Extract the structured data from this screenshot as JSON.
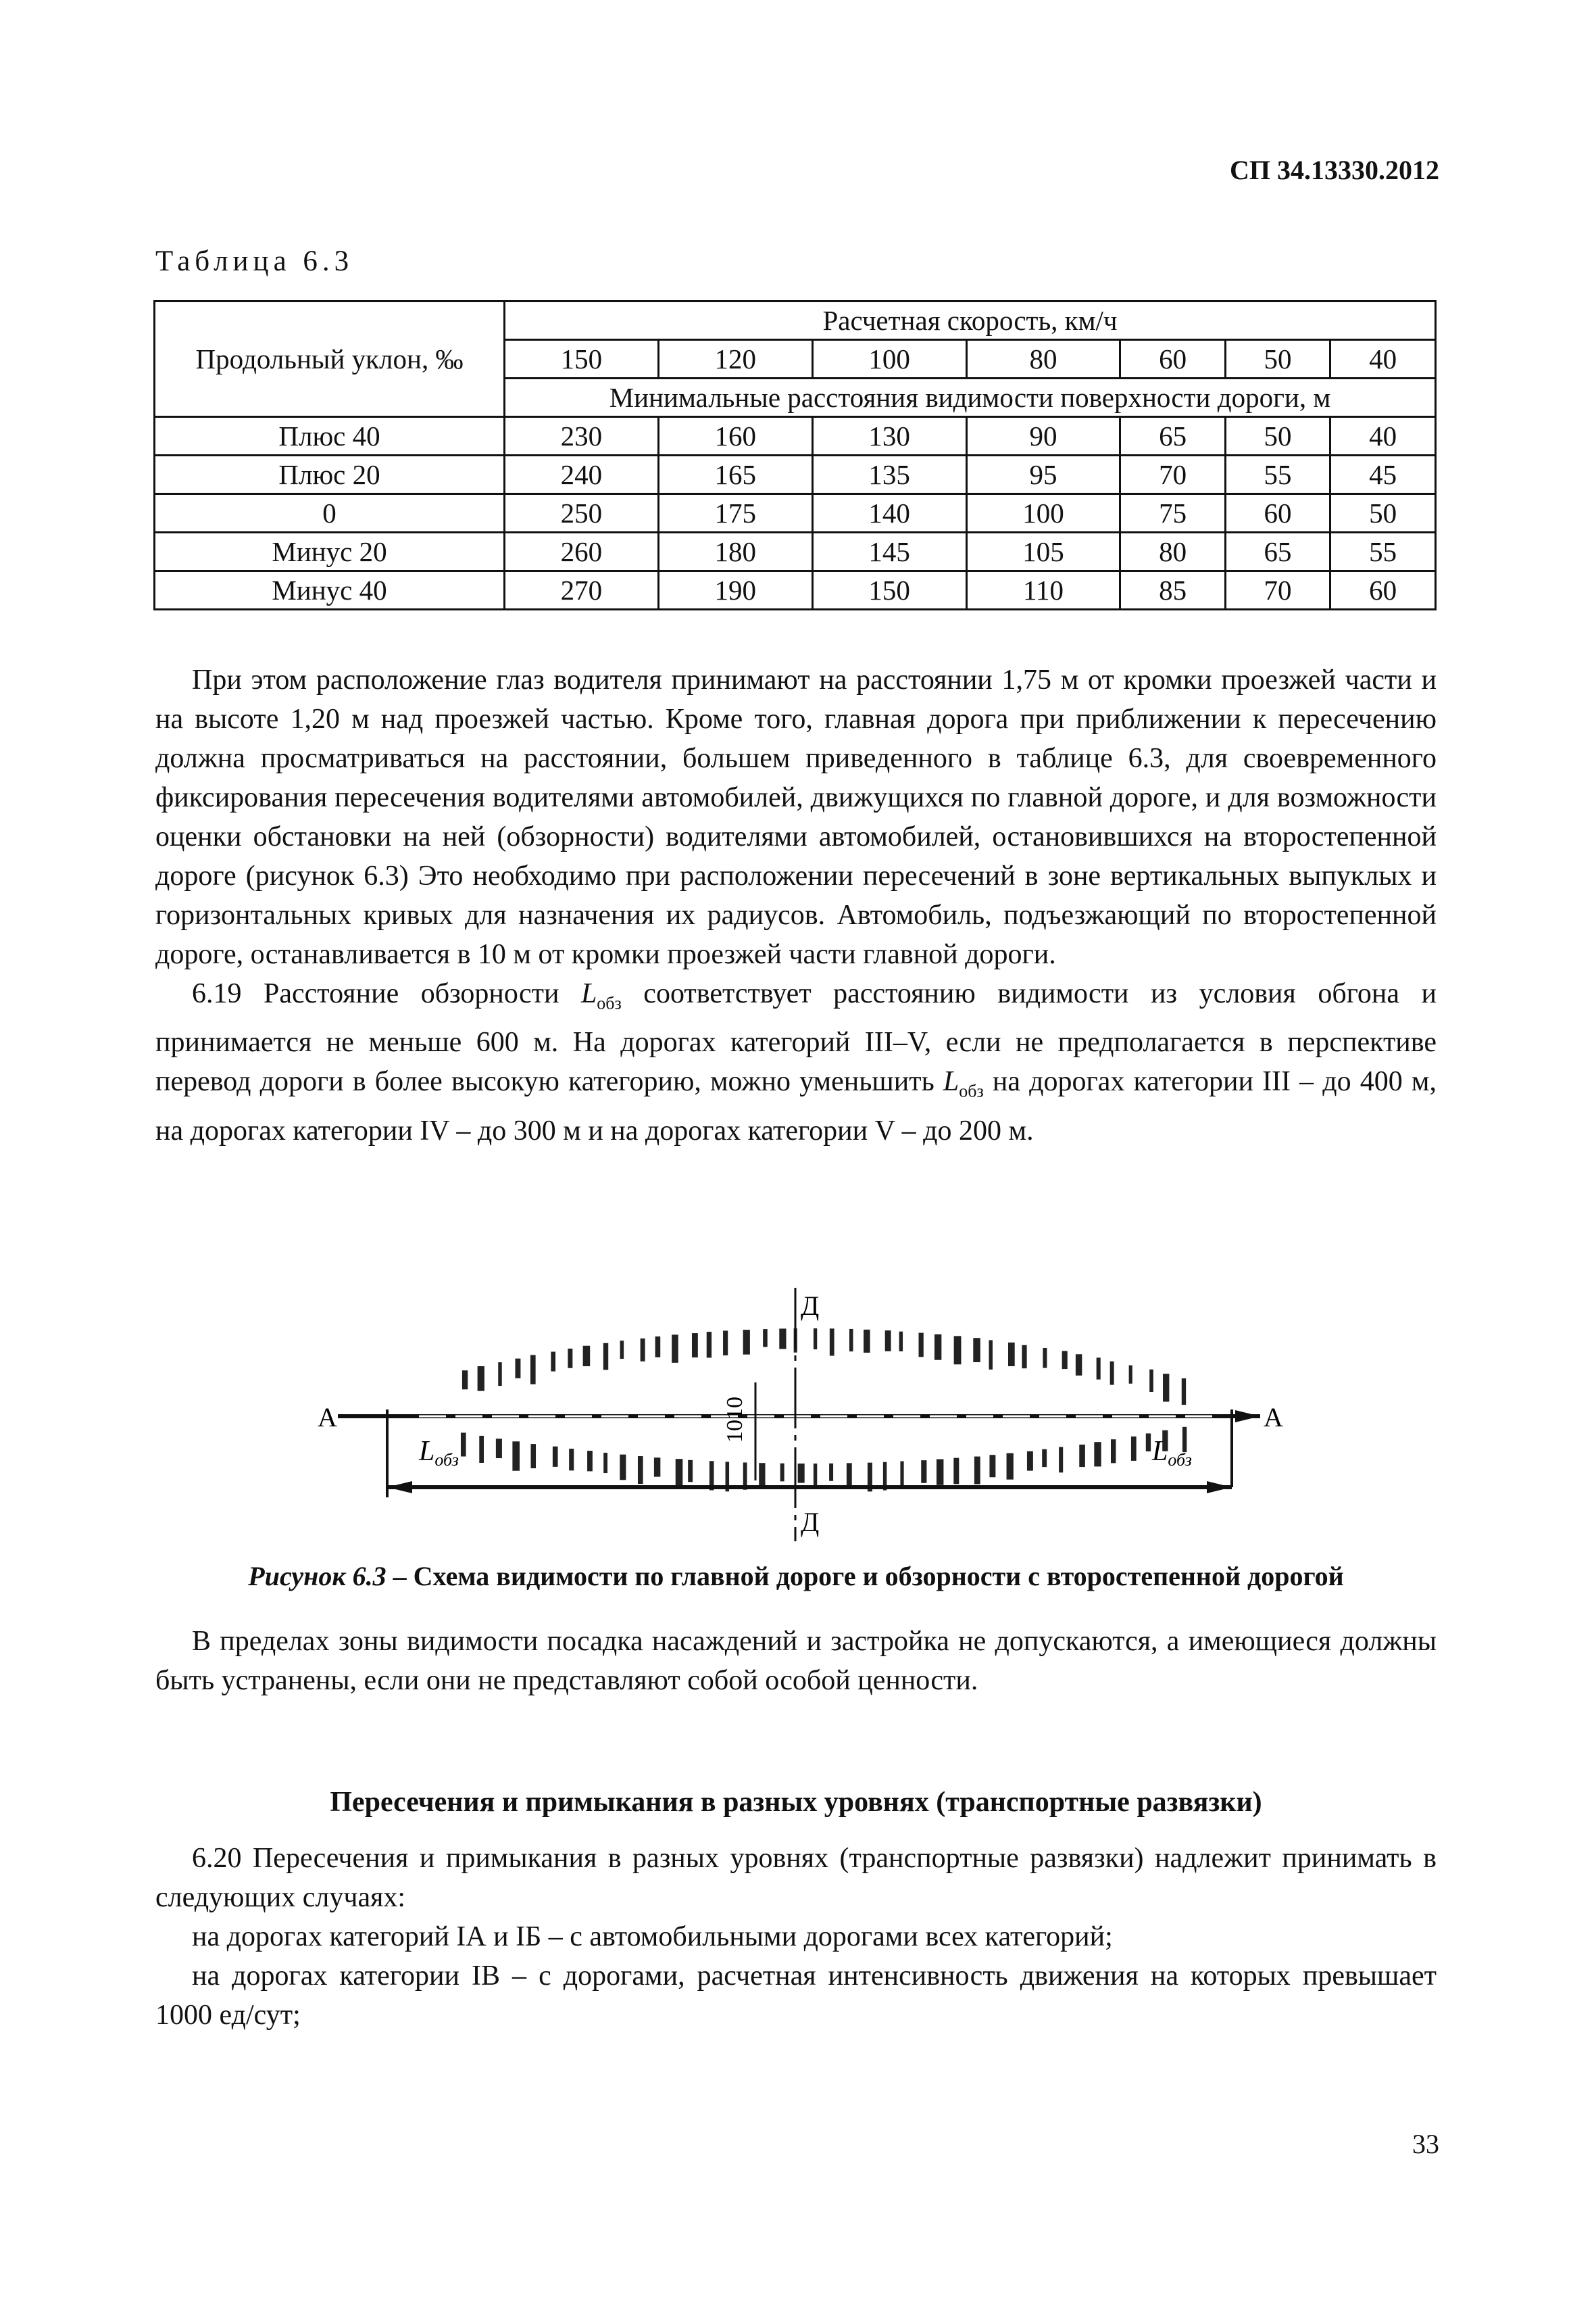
{
  "header": {
    "doc_code": "СП 34.13330.2012"
  },
  "table": {
    "caption": "Таблица 6.3",
    "row_header": "Продольный уклон, ‰",
    "group_header": "Расчетная скорость, км/ч",
    "speeds": [
      "150",
      "120",
      "100",
      "80",
      "60",
      "50",
      "40"
    ],
    "subheader": "Минимальные расстояния видимости поверхности дороги, м",
    "rows": [
      {
        "label": "Плюс 40",
        "values": [
          "230",
          "160",
          "130",
          "90",
          "65",
          "50",
          "40"
        ]
      },
      {
        "label": "Плюс 20",
        "values": [
          "240",
          "165",
          "135",
          "95",
          "70",
          "55",
          "45"
        ]
      },
      {
        "label": "0",
        "values": [
          "250",
          "175",
          "140",
          "100",
          "75",
          "60",
          "50"
        ]
      },
      {
        "label": "Минус 20",
        "values": [
          "260",
          "180",
          "145",
          "105",
          "80",
          "65",
          "55"
        ]
      },
      {
        "label": "Минус 40",
        "values": [
          "270",
          "190",
          "150",
          "110",
          "85",
          "70",
          "60"
        ]
      }
    ]
  },
  "paragraphs": {
    "p1": "При этом расположение глаз водителя принимают на расстоянии 1,75 м от кромки проезжей части и на высоте 1,20 м над проезжей частью. Кроме того, главная дорога при приближении к пересечению должна просматриваться на расстоянии, большем приведенного в таблице 6.3, для своевременного фиксирования пересечения водителями автомобилей, движущихся по главной дороге, и для возможности оценки обстановки на ней (обзорности) водителями автомобилей, остановившихся на второстепенной дороге (рисунок 6.3) Это необходимо при расположении пересечений в зоне вертикальных выпуклых и горизонтальных кривых для назначения их радиусов. Автомобиль, подъезжающий по второстепенной дороге, останавливается в 10 м от кромки проезжей части главной дороги.",
    "p2_a": "6.19 Расстояние обзорности ",
    "p2_L": "L",
    "p2_sub": "обз",
    "p2_b": " соответствует расстоянию видимости из условия обгона и принимается не меньше 600 м. На дорогах категорий III–V, если не предполагается в перспективе перевод дороги в более высокую категорию, можно уменьшить ",
    "p2_c": " на дорогах категории III  – до 400 м, на дорогах категории IV  – до 300 м и на дорогах категории V  – до 200 м.",
    "p3": "В пределах зоны видимости посадка насаждений и застройка не допускаются, а имеющиеся должны быть устранены, если они не представляют собой особой ценности.",
    "heading": "Пересечения и примыкания в разных уровнях (транспортные развязки)",
    "p4": "6.20 Пересечения и примыкания в разных уровнях (транспортные развязки) надлежит принимать в следующих случаях:",
    "p5": "на дорогах категорий IА и IБ – с автомобильными дорогами всех категорий;",
    "p6": "на дорогах категории IВ – с дорогами, расчетная интенсивность движения на которых превышает 1000 ед/сут;"
  },
  "figure": {
    "label_a": "А",
    "label_d": "Д",
    "dim_label": "1010",
    "L": "L",
    "L_sub": "обз",
    "caption_italic": "Рисунок 6.3",
    "caption_text": " – Схема видимости по главной дороге и обзорности с второстепенной дорогой"
  },
  "page_number": "33"
}
